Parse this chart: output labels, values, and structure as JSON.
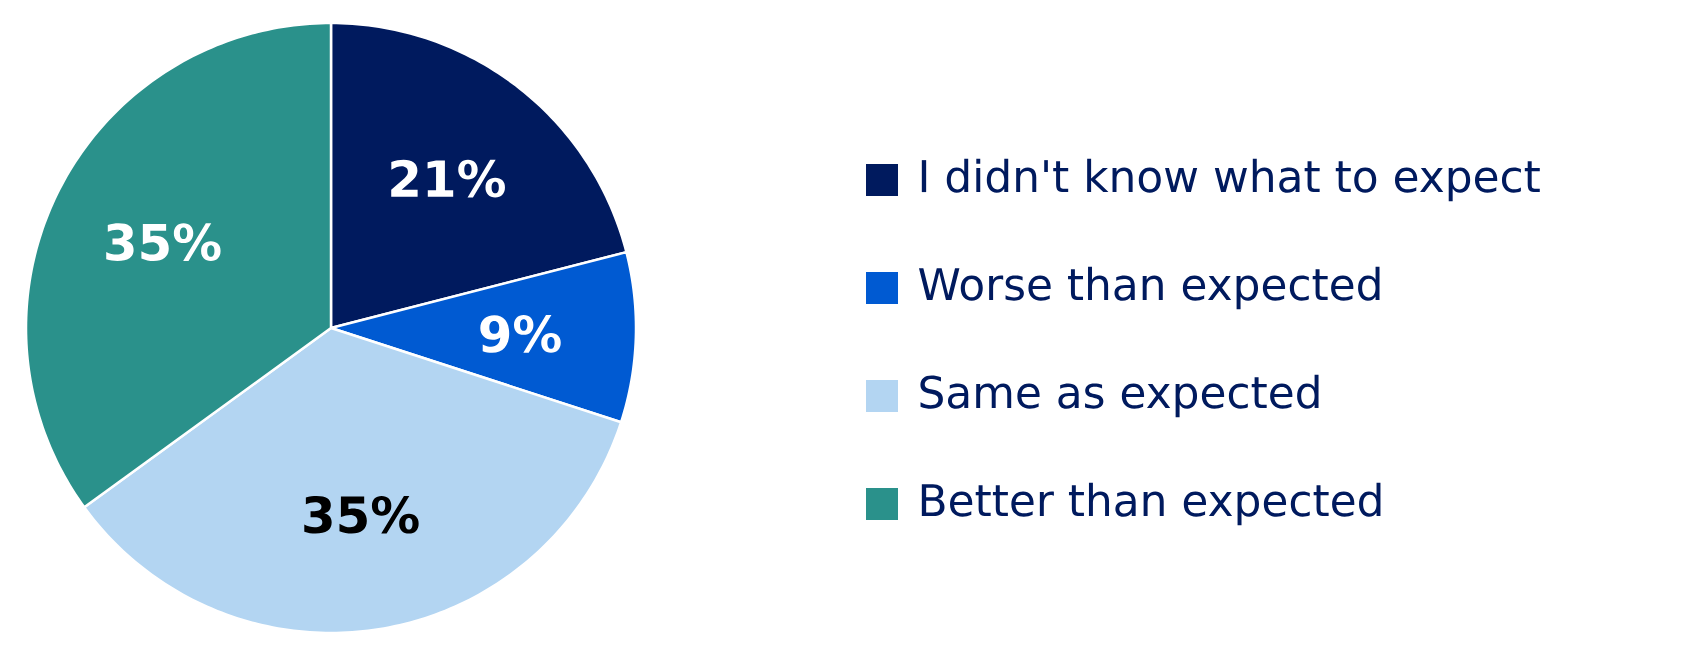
{
  "chart_data": {
    "type": "pie",
    "categories": [
      "I didn't know what to expect",
      "Worse than expected",
      "Same as expected",
      "Better than expected"
    ],
    "values": [
      21,
      9,
      35,
      35
    ],
    "colors": [
      "#001a5e",
      "#005ad2",
      "#b3d5f2",
      "#2a918b"
    ],
    "value_labels": [
      "21%",
      "9%",
      "35%",
      "35%"
    ],
    "data_labels": true,
    "legend": "right"
  }
}
